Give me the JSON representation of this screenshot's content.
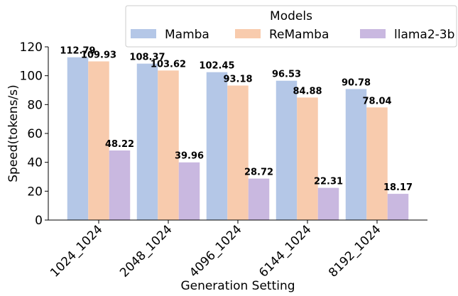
{
  "chart_data": {
    "type": "bar",
    "categories": [
      "1024_1024",
      "2048_1024",
      "4096_1024",
      "6144_1024",
      "8192_1024"
    ],
    "series": [
      {
        "name": "Mamba",
        "color": "#b4c7e7",
        "values": [
          112.79,
          108.37,
          102.45,
          96.53,
          90.78
        ]
      },
      {
        "name": "ReMamba",
        "color": "#f8cbad",
        "values": [
          109.93,
          103.62,
          93.18,
          84.88,
          78.04
        ]
      },
      {
        "name": "llama2-3b",
        "color": "#c9b8e0",
        "values": [
          48.22,
          39.96,
          28.72,
          22.31,
          18.17
        ]
      }
    ],
    "xlabel": "Generation Setting",
    "ylabel": "Speed(tokens/s)",
    "legend_title": "Models",
    "ylim": [
      0,
      120
    ],
    "yticks": [
      0,
      20,
      40,
      60,
      80,
      100,
      120
    ]
  }
}
